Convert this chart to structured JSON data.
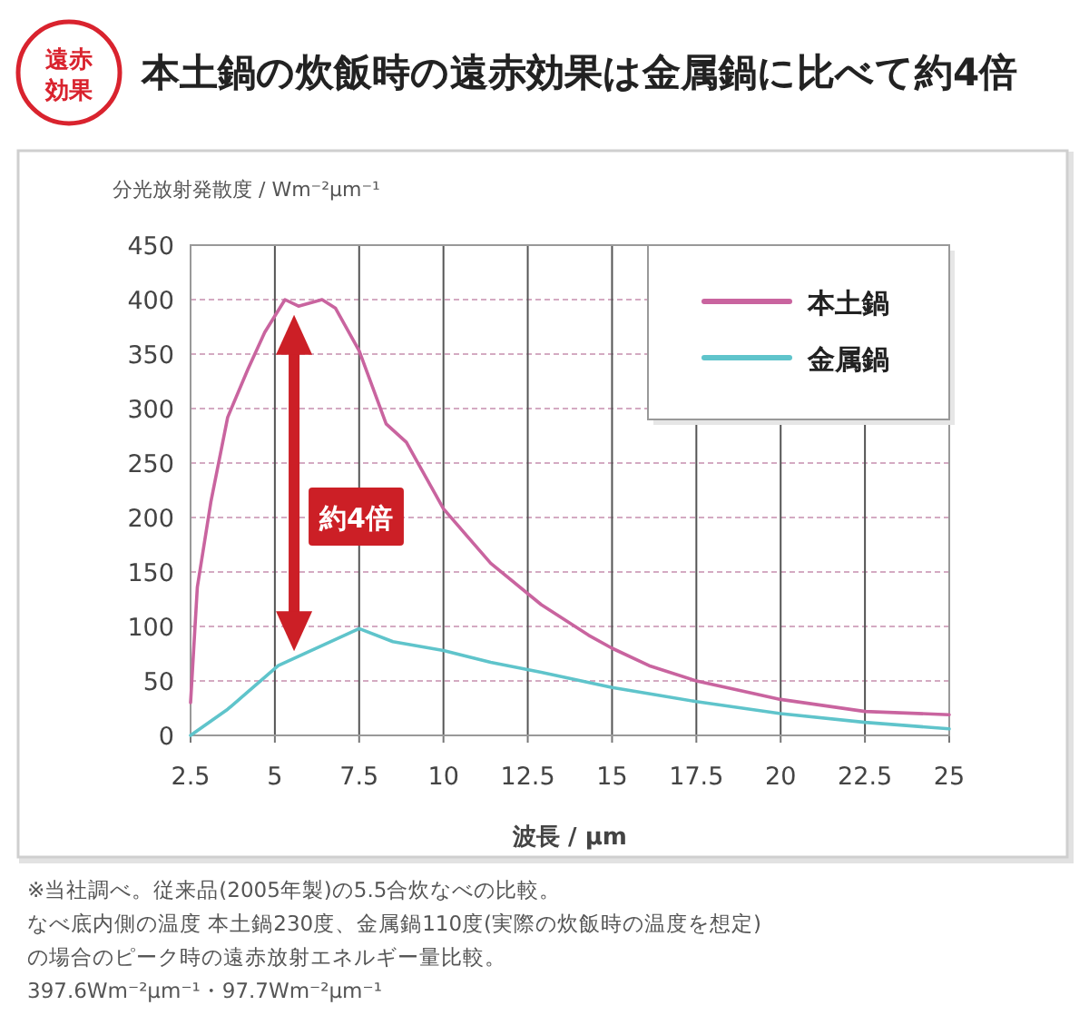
{
  "chart_data": {
    "type": "line",
    "title": "本土鍋の炊飯時の遠赤効果は金属鍋に比べて約4倍",
    "xlabel": "波長 / μm",
    "ylabel": "分光放射発散度 / Wm⁻²μm⁻¹",
    "xlim": [
      2.5,
      25
    ],
    "xticks": [
      2.5,
      5,
      7.5,
      10,
      12.5,
      15,
      17.5,
      20,
      22.5,
      25
    ],
    "ylim": [
      0,
      450
    ],
    "yticks": [
      0,
      50,
      100,
      150,
      200,
      250,
      300,
      350,
      400,
      450
    ],
    "grid": true,
    "legend": "top right",
    "series": [
      {
        "name": "本土鍋",
        "color": "#c9649f",
        "x": [
          2.5,
          2.7,
          3.1,
          3.6,
          4.2,
          4.7,
          5.3,
          5.7,
          6.4,
          6.8,
          7.5,
          8.3,
          8.9,
          10,
          11.4,
          12.9,
          14.3,
          15,
          16.1,
          17.5,
          20,
          22.5,
          25
        ],
        "values": [
          30,
          136,
          214,
          292,
          336,
          370,
          400,
          394,
          400,
          392,
          353,
          286,
          269,
          208,
          158,
          120,
          92,
          80,
          64,
          50,
          33,
          22,
          19
        ]
      },
      {
        "name": "金属鍋",
        "color": "#5fc4cb",
        "x": [
          2.5,
          3.6,
          5.1,
          7.5,
          8.5,
          10,
          11.4,
          12.9,
          15,
          17.5,
          20,
          22.5,
          25
        ],
        "values": [
          0,
          24,
          64,
          98,
          86,
          78,
          67,
          58,
          44,
          31,
          20,
          12,
          6
        ]
      }
    ],
    "annotations": [
      "遠赤効果",
      "約4倍",
      "※当社調べ。従来品(2005年製)の5.5合炊なべの比較。",
      "なべ底内側の温度 本土鍋230度、金属鍋110度(実際の炊飯時の温度を想定)",
      "の場合のピーク時の遠赤放射エネルギー量比較。",
      "397.6Wm⁻²μm⁻¹・97.7Wm⁻²μm⁻¹"
    ]
  }
}
